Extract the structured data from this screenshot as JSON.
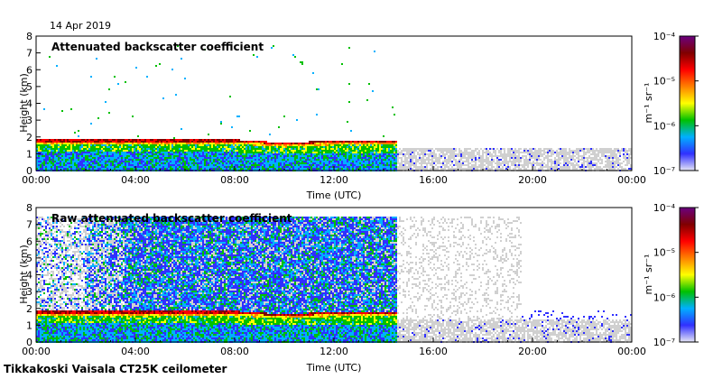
{
  "header": {
    "date": "14 Apr 2019"
  },
  "footer": {
    "instrument": "Tikkakoski Vaisala CT25K ceilometer"
  },
  "colorbar": {
    "ylabel": "m⁻¹ sr⁻¹",
    "tick_labels": [
      "10⁻⁴",
      "10⁻⁵",
      "10⁻⁶",
      "10⁻⁷"
    ],
    "range": [
      1e-07,
      0.0001
    ],
    "scale": "log",
    "colors": [
      "#e6e6f5",
      "#3030ff",
      "#00b0ff",
      "#00c000",
      "#ffff00",
      "#ff8000",
      "#ff0000",
      "#800000",
      "#6a0080"
    ]
  },
  "chart_data": [
    {
      "type": "heatmap",
      "title": "Attenuated backscatter coefficient",
      "xlabel": "Time (UTC)",
      "ylabel": "Height (km)",
      "x_tick_labels": [
        "00:00",
        "04:00",
        "08:00",
        "12:00",
        "16:00",
        "20:00",
        "00:00"
      ],
      "y_tick_labels": [
        "0",
        "1",
        "2",
        "3",
        "4",
        "5",
        "6",
        "7",
        "8"
      ],
      "xlim": [
        0,
        24
      ],
      "ylim": [
        0,
        8
      ],
      "layer_top_km": [
        {
          "t": 0,
          "h": 1.9
        },
        {
          "t": 4,
          "h": 1.9
        },
        {
          "t": 8,
          "h": 1.9
        },
        {
          "t": 10,
          "h": 1.7
        },
        {
          "t": 12,
          "h": 1.85
        },
        {
          "t": 14.5,
          "h": 1.85
        }
      ],
      "data_end_hour": 14.5,
      "noise_only_after_hour": 14.6
    },
    {
      "type": "heatmap",
      "title": "Raw attenuated backscatter coefficient",
      "xlabel": "Time (UTC)",
      "ylabel": "Height (km)",
      "x_tick_labels": [
        "00:00",
        "04:00",
        "08:00",
        "12:00",
        "16:00",
        "20:00",
        "00:00"
      ],
      "y_tick_labels": [
        "0",
        "1",
        "2",
        "3",
        "4",
        "5",
        "6",
        "7",
        "8"
      ],
      "xlim": [
        0,
        24
      ],
      "ylim": [
        0,
        8
      ],
      "layer_top_km": [
        {
          "t": 0,
          "h": 1.9
        },
        {
          "t": 4,
          "h": 1.9
        },
        {
          "t": 8,
          "h": 1.9
        },
        {
          "t": 10,
          "h": 1.7
        },
        {
          "t": 12,
          "h": 1.85
        },
        {
          "t": 14.5,
          "h": 1.85
        }
      ],
      "data_end_hour": 14.5,
      "noise_only_after_hour": 14.6
    }
  ]
}
